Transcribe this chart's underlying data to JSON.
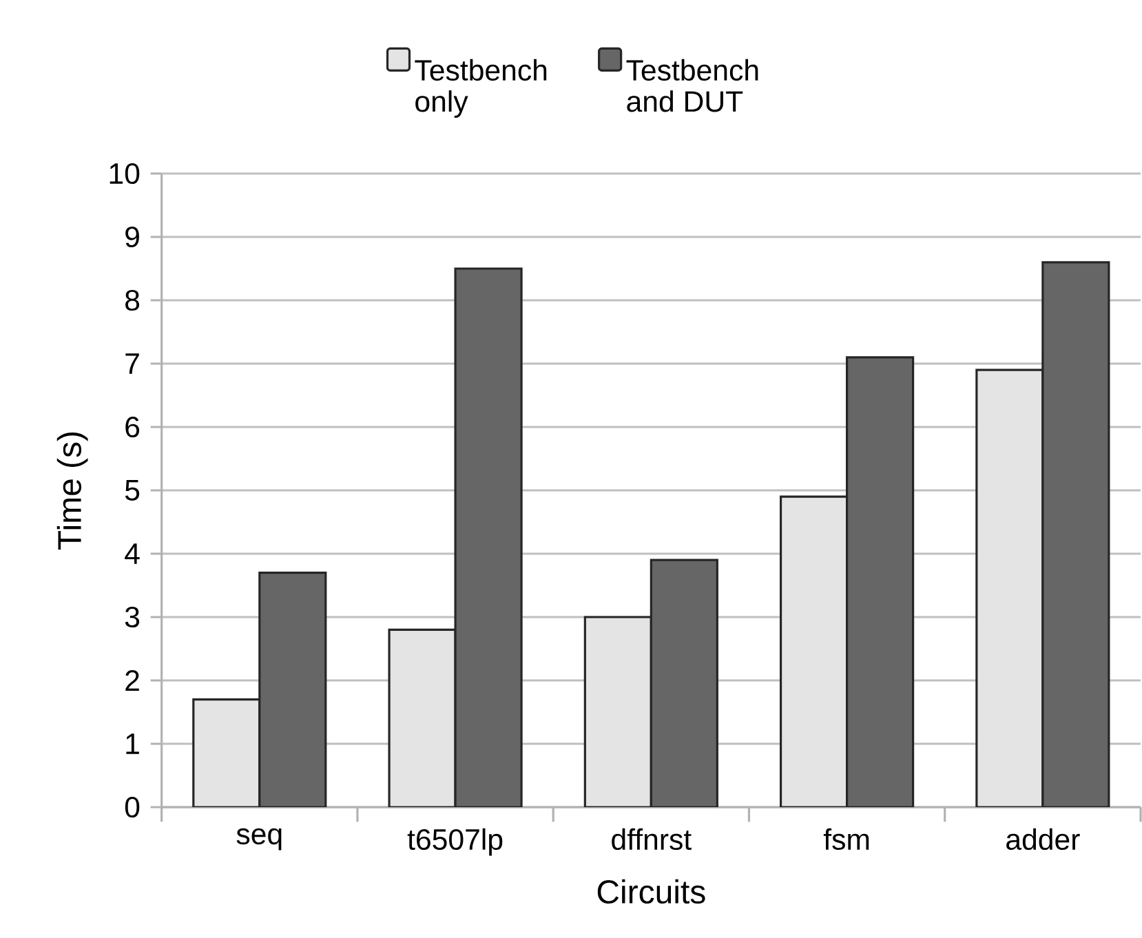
{
  "chart_data": {
    "type": "bar",
    "xlabel": "Circuits",
    "ylabel": "Time (s)",
    "categories": [
      "seq",
      "t6507lp",
      "dffnrst",
      "fsm",
      "adder"
    ],
    "series": [
      {
        "name": "Testbench only",
        "color": "#e4e4e4",
        "values": [
          1.7,
          2.8,
          3.0,
          4.9,
          6.9
        ]
      },
      {
        "name": "Testbench and DUT",
        "color": "#666666",
        "values": [
          3.7,
          8.5,
          3.9,
          7.1,
          8.6
        ]
      }
    ],
    "ylim": [
      0,
      10
    ],
    "yticks": [
      0,
      1,
      2,
      3,
      4,
      5,
      6,
      7,
      8,
      9,
      10
    ],
    "grid": "y",
    "legend": "top"
  }
}
